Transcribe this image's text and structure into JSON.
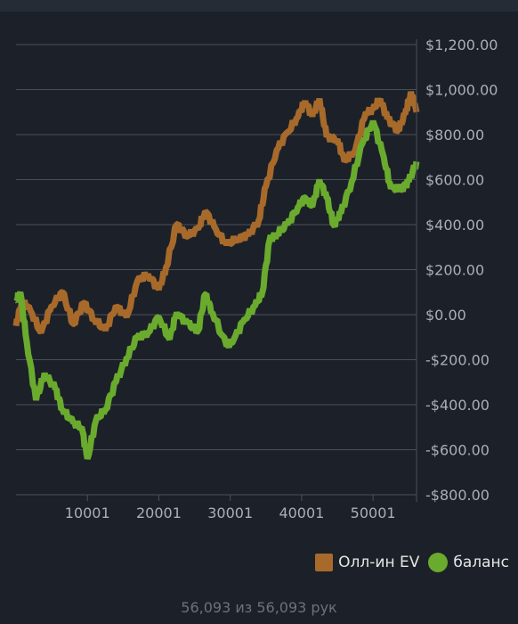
{
  "chart_data": {
    "type": "line",
    "xlim": [
      1,
      56093
    ],
    "ylim": [
      -800,
      1200
    ],
    "x_ticks": [
      10001,
      20001,
      30001,
      40001,
      50001
    ],
    "y_ticks": [
      -800,
      -600,
      -400,
      -200,
      0,
      200,
      400,
      600,
      800,
      1000,
      1200
    ],
    "y_tick_labels": [
      "-$800.00",
      "-$600.00",
      "-$400.00",
      "-$200.00",
      "$0.00",
      "$200.00",
      "$400.00",
      "$600.00",
      "$800.00",
      "$1,000.00",
      "$1,200.00"
    ],
    "x_tick_labels": [
      "10001",
      "20001",
      "30001",
      "40001",
      "50001"
    ],
    "grid": true,
    "legend_position": "bottom-right",
    "series": [
      {
        "name": "Олл-ин EV",
        "color": "#a86a2a",
        "points": [
          [
            1,
            -50
          ],
          [
            800,
            60
          ],
          [
            2000,
            20
          ],
          [
            3500,
            -80
          ],
          [
            5000,
            40
          ],
          [
            6500,
            100
          ],
          [
            8000,
            -40
          ],
          [
            9500,
            50
          ],
          [
            11000,
            -20
          ],
          [
            12500,
            -70
          ],
          [
            14000,
            40
          ],
          [
            15500,
            -10
          ],
          [
            17000,
            150
          ],
          [
            18500,
            180
          ],
          [
            20000,
            110
          ],
          [
            21000,
            210
          ],
          [
            22500,
            400
          ],
          [
            24000,
            350
          ],
          [
            25500,
            380
          ],
          [
            26500,
            460
          ],
          [
            28000,
            380
          ],
          [
            29500,
            310
          ],
          [
            31000,
            340
          ],
          [
            32500,
            350
          ],
          [
            34000,
            420
          ],
          [
            35000,
            570
          ],
          [
            36500,
            730
          ],
          [
            38000,
            810
          ],
          [
            39500,
            880
          ],
          [
            40500,
            950
          ],
          [
            41500,
            880
          ],
          [
            42500,
            960
          ],
          [
            43500,
            790
          ],
          [
            45000,
            780
          ],
          [
            46000,
            680
          ],
          [
            47500,
            730
          ],
          [
            49000,
            900
          ],
          [
            50000,
            910
          ],
          [
            51000,
            960
          ],
          [
            52000,
            870
          ],
          [
            53500,
            820
          ],
          [
            54500,
            890
          ],
          [
            55300,
            990
          ],
          [
            56093,
            900
          ]
        ]
      },
      {
        "name": "баланс",
        "color": "#6aab2e",
        "points": [
          [
            1,
            60
          ],
          [
            600,
            100
          ],
          [
            1500,
            -120
          ],
          [
            2800,
            -380
          ],
          [
            4000,
            -260
          ],
          [
            5500,
            -330
          ],
          [
            6500,
            -420
          ],
          [
            8000,
            -480
          ],
          [
            9200,
            -500
          ],
          [
            10000,
            -640
          ],
          [
            11200,
            -470
          ],
          [
            12500,
            -420
          ],
          [
            14000,
            -300
          ],
          [
            15500,
            -190
          ],
          [
            17000,
            -100
          ],
          [
            18500,
            -80
          ],
          [
            20000,
            -10
          ],
          [
            21500,
            -110
          ],
          [
            22500,
            10
          ],
          [
            24000,
            -40
          ],
          [
            25500,
            -70
          ],
          [
            26500,
            90
          ],
          [
            27500,
            10
          ],
          [
            29500,
            -140
          ],
          [
            30500,
            -110
          ],
          [
            32000,
            -20
          ],
          [
            33500,
            40
          ],
          [
            34500,
            100
          ],
          [
            35500,
            330
          ],
          [
            36500,
            360
          ],
          [
            38000,
            400
          ],
          [
            39500,
            480
          ],
          [
            40500,
            520
          ],
          [
            41500,
            480
          ],
          [
            42500,
            600
          ],
          [
            43500,
            520
          ],
          [
            44500,
            400
          ],
          [
            45500,
            450
          ],
          [
            47000,
            590
          ],
          [
            48500,
            760
          ],
          [
            50000,
            860
          ],
          [
            51500,
            700
          ],
          [
            52500,
            560
          ],
          [
            54000,
            560
          ],
          [
            55000,
            590
          ],
          [
            56093,
            680
          ]
        ]
      }
    ]
  },
  "legend": {
    "items": [
      {
        "label": "Олл-ин EV",
        "color": "#a86a2a"
      },
      {
        "label": "баланс",
        "color": "#6aab2e"
      }
    ]
  },
  "footer": {
    "text": "56,093 из 56,093 рук"
  }
}
